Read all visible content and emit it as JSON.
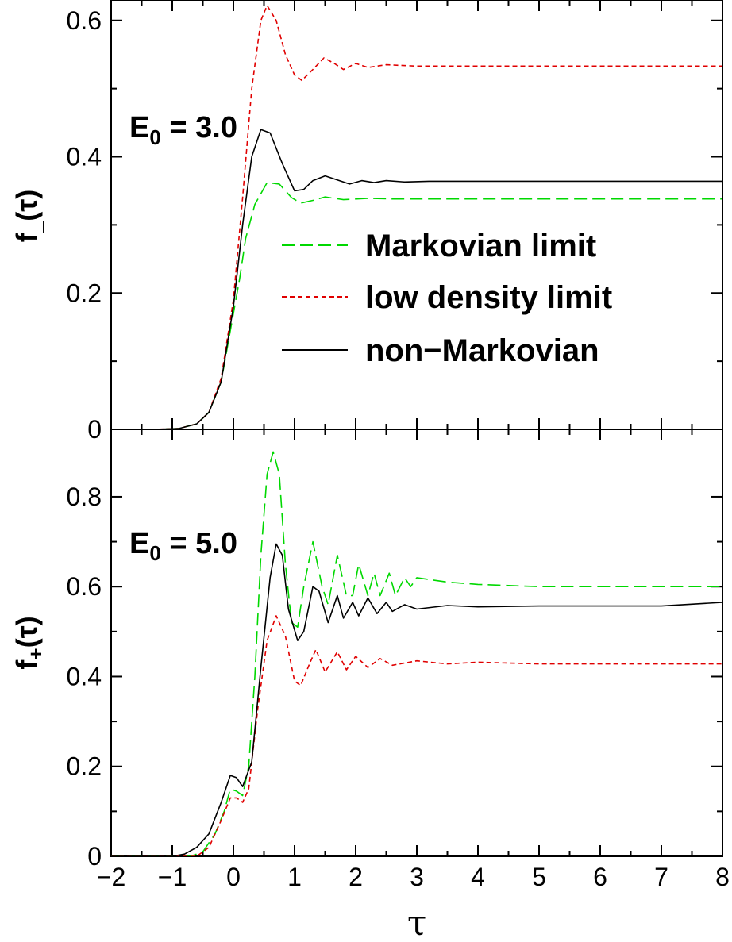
{
  "figure": {
    "x_axis": {
      "label": "τ",
      "range": [
        -2,
        8
      ],
      "ticks": [
        -2,
        -1,
        0,
        1,
        2,
        3,
        4,
        5,
        6,
        7,
        8
      ],
      "tick_labels": [
        "−2",
        "−1",
        "0",
        "1",
        "2",
        "3",
        "4",
        "5",
        "6",
        "7",
        "8"
      ]
    },
    "legend": {
      "placement": "upper panel, right",
      "entries": [
        {
          "label": "Markovian limit",
          "color": "#00d800",
          "style": "long-dash"
        },
        {
          "label": "low density limit",
          "color": "#e00000",
          "style": "short-dash"
        },
        {
          "label": "non−Markovian",
          "color": "#000000",
          "style": "solid"
        }
      ]
    },
    "panels": [
      {
        "id": "top",
        "ylabel_main": "f",
        "ylabel_sub": "_",
        "ylabel_tail": "(τ)",
        "annotation_main": "E",
        "annotation_sub": "0",
        "annotation_tail": " = 3.0",
        "ylim": [
          0,
          0.63
        ],
        "yticks": [
          0,
          0.2,
          0.4,
          0.6
        ],
        "ytick_labels": [
          "0",
          "0.2",
          "0.4",
          "0.6"
        ]
      },
      {
        "id": "bottom",
        "ylabel_main": "f",
        "ylabel_sub": "+",
        "ylabel_tail": "(τ)",
        "annotation_main": "E",
        "annotation_sub": "0",
        "annotation_tail": " = 5.0",
        "ylim": [
          0,
          0.95
        ],
        "yticks": [
          0,
          0.2,
          0.4,
          0.6,
          0.8
        ],
        "ytick_labels": [
          "0",
          "0.2",
          "0.4",
          "0.6",
          "0.8"
        ]
      }
    ]
  },
  "chart_data": [
    {
      "type": "line",
      "xlabel": "τ",
      "ylabel": "f_(τ)",
      "annotation": "E0 = 3.0",
      "xlim": [
        -2,
        8
      ],
      "ylim": [
        0,
        0.63
      ],
      "grid": false,
      "legend": "right",
      "series": [
        {
          "name": "Markovian limit",
          "color": "#00d800",
          "style": "long-dash",
          "x": [
            -2,
            -1.3,
            -0.9,
            -0.6,
            -0.4,
            -0.2,
            0,
            0.1,
            0.2,
            0.35,
            0.55,
            0.75,
            0.95,
            1.1,
            1.3,
            1.5,
            1.8,
            2.2,
            2.6,
            3,
            4,
            5,
            6,
            7,
            8
          ],
          "y": [
            0,
            0,
            0.001,
            0.008,
            0.025,
            0.07,
            0.17,
            0.22,
            0.28,
            0.33,
            0.362,
            0.36,
            0.34,
            0.332,
            0.336,
            0.341,
            0.337,
            0.339,
            0.338,
            0.338,
            0.338,
            0.338,
            0.338,
            0.338,
            0.338
          ]
        },
        {
          "name": "low density limit",
          "color": "#e00000",
          "style": "short-dash",
          "x": [
            -2,
            -1.3,
            -0.9,
            -0.6,
            -0.4,
            -0.2,
            0,
            0.15,
            0.3,
            0.45,
            0.55,
            0.7,
            0.85,
            1,
            1.12,
            1.3,
            1.48,
            1.65,
            1.8,
            2,
            2.2,
            2.5,
            3,
            4,
            5,
            6,
            7,
            8
          ],
          "y": [
            0,
            0,
            0.001,
            0.008,
            0.025,
            0.075,
            0.19,
            0.34,
            0.5,
            0.6,
            0.622,
            0.6,
            0.55,
            0.52,
            0.512,
            0.528,
            0.545,
            0.537,
            0.528,
            0.537,
            0.531,
            0.535,
            0.533,
            0.533,
            0.533,
            0.533,
            0.533,
            0.533
          ]
        },
        {
          "name": "non−Markovian",
          "color": "#000000",
          "style": "solid",
          "x": [
            -2,
            -1.3,
            -0.9,
            -0.6,
            -0.4,
            -0.2,
            0,
            0.15,
            0.3,
            0.45,
            0.6,
            0.8,
            1,
            1.15,
            1.3,
            1.5,
            1.7,
            1.9,
            2.1,
            2.3,
            2.5,
            2.8,
            3.2,
            4,
            5,
            6,
            7,
            8
          ],
          "y": [
            0,
            0,
            0.001,
            0.008,
            0.025,
            0.07,
            0.18,
            0.3,
            0.4,
            0.44,
            0.435,
            0.39,
            0.35,
            0.352,
            0.365,
            0.372,
            0.366,
            0.36,
            0.365,
            0.362,
            0.365,
            0.363,
            0.364,
            0.364,
            0.364,
            0.364,
            0.364,
            0.364
          ]
        }
      ]
    },
    {
      "type": "line",
      "xlabel": "τ",
      "ylabel": "f+(τ)",
      "annotation": "E0 = 5.0",
      "xlim": [
        -2,
        8
      ],
      "ylim": [
        0,
        0.95
      ],
      "grid": false,
      "series": [
        {
          "name": "Markovian limit",
          "color": "#00d800",
          "style": "long-dash",
          "x": [
            -2,
            -0.7,
            -0.5,
            -0.3,
            -0.15,
            -0.05,
            0.05,
            0.15,
            0.25,
            0.35,
            0.45,
            0.55,
            0.65,
            0.75,
            0.85,
            0.95,
            1.05,
            1.15,
            1.3,
            1.45,
            1.55,
            1.7,
            1.85,
            1.95,
            2.05,
            2.2,
            2.3,
            2.4,
            2.55,
            2.65,
            2.8,
            2.9,
            3,
            3.5,
            4,
            5,
            6,
            7,
            8
          ],
          "y": [
            0,
            0,
            0.01,
            0.05,
            0.1,
            0.15,
            0.145,
            0.135,
            0.2,
            0.4,
            0.67,
            0.85,
            0.9,
            0.85,
            0.65,
            0.52,
            0.51,
            0.6,
            0.7,
            0.6,
            0.56,
            0.67,
            0.58,
            0.58,
            0.65,
            0.58,
            0.63,
            0.58,
            0.63,
            0.58,
            0.62,
            0.6,
            0.62,
            0.61,
            0.605,
            0.6,
            0.6,
            0.6,
            0.6
          ]
        },
        {
          "name": "low density limit",
          "color": "#e00000",
          "style": "short-dash",
          "x": [
            -2,
            -0.6,
            -0.4,
            -0.2,
            -0.05,
            0.05,
            0.15,
            0.25,
            0.4,
            0.55,
            0.7,
            0.85,
            1,
            1.1,
            1.25,
            1.35,
            1.5,
            1.7,
            1.85,
            2,
            2.2,
            2.4,
            2.6,
            3,
            3.5,
            4,
            5,
            6,
            7,
            8
          ],
          "y": [
            0,
            0,
            0.02,
            0.08,
            0.13,
            0.13,
            0.12,
            0.15,
            0.33,
            0.48,
            0.535,
            0.49,
            0.39,
            0.38,
            0.43,
            0.46,
            0.41,
            0.455,
            0.415,
            0.445,
            0.42,
            0.44,
            0.425,
            0.435,
            0.428,
            0.432,
            0.428,
            0.428,
            0.428,
            0.428
          ]
        },
        {
          "name": "non−Markovian",
          "color": "#000000",
          "style": "solid",
          "x": [
            -2,
            -1,
            -0.8,
            -0.6,
            -0.4,
            -0.2,
            -0.05,
            0.05,
            0.15,
            0.3,
            0.45,
            0.6,
            0.7,
            0.8,
            0.9,
            1.05,
            1.15,
            1.3,
            1.4,
            1.55,
            1.7,
            1.8,
            1.95,
            2.05,
            2.2,
            2.35,
            2.5,
            2.6,
            2.8,
            3,
            3.5,
            4,
            5,
            6,
            7,
            8
          ],
          "y": [
            0,
            0,
            0.005,
            0.02,
            0.05,
            0.12,
            0.18,
            0.175,
            0.155,
            0.21,
            0.42,
            0.62,
            0.695,
            0.67,
            0.55,
            0.48,
            0.5,
            0.6,
            0.59,
            0.52,
            0.58,
            0.53,
            0.565,
            0.535,
            0.575,
            0.54,
            0.565,
            0.545,
            0.56,
            0.55,
            0.558,
            0.555,
            0.557,
            0.557,
            0.557,
            0.565
          ]
        }
      ]
    }
  ]
}
